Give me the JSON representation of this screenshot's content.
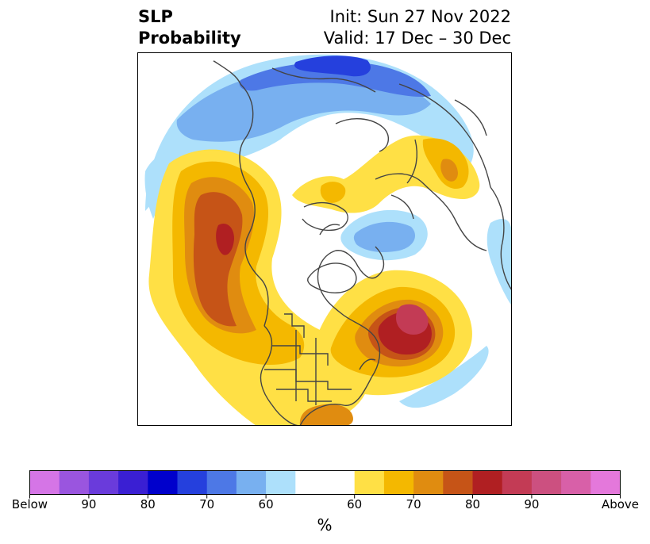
{
  "title": {
    "left_line1": "SLP",
    "left_line2": "Probability",
    "right_line1": "Init: Sun 27 Nov 2022",
    "right_line2": "Valid: 17 Dec – 30 Dec"
  },
  "colorbar": {
    "colors": [
      "#d575e6",
      "#9a55df",
      "#6a3bdb",
      "#3a1fd3",
      "#0000cc",
      "#2540dd",
      "#4d78e6",
      "#78b0f0",
      "#ade0fb",
      "#ffffff",
      "#ffffff",
      "#ffe045",
      "#f4b800",
      "#e08c10",
      "#c65417",
      "#b01f22",
      "#c33b55",
      "#cc5080",
      "#d860a8",
      "#e478db"
    ],
    "labels": [
      "Below",
      "90",
      "80",
      "70",
      "60",
      "60",
      "70",
      "80",
      "90",
      "Above"
    ],
    "unit": "%"
  },
  "map": {
    "projection": "north-polar-stereographic",
    "fill_colors": {
      "above_50": "#ffe045",
      "above_60": "#f4b800",
      "above_65": "#e08c10",
      "above_70": "#c65417",
      "above_75": "#b01f22",
      "above_80": "#c33b55",
      "below_50": "#ade0fb",
      "below_55": "#78b0f0",
      "below_60": "#4d78e6",
      "below_65": "#2540dd",
      "coast": "#444444"
    }
  }
}
